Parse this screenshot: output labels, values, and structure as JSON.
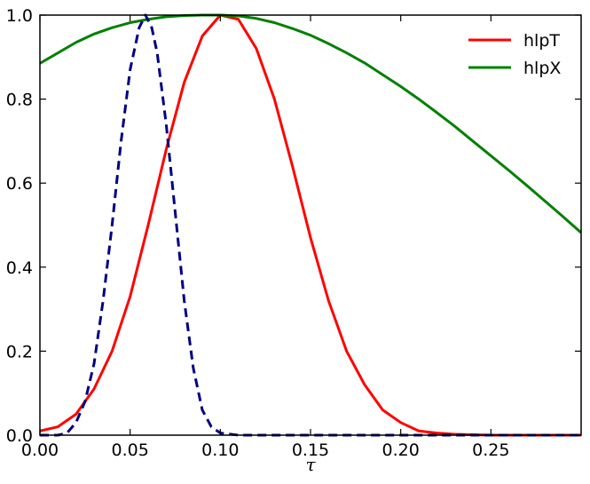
{
  "chart_data": {
    "type": "line",
    "title": "",
    "xlabel": "τ",
    "ylabel": "",
    "xlim": [
      0.0,
      0.3
    ],
    "ylim": [
      0.0,
      1.0
    ],
    "xticks": [
      "0.00",
      "0.05",
      "0.10",
      "0.15",
      "0.20",
      "0.25"
    ],
    "yticks": [
      "0.0",
      "0.2",
      "0.4",
      "0.6",
      "0.8",
      "1.0"
    ],
    "grid": false,
    "legend": "top-right",
    "x": [
      0.0,
      0.01,
      0.02,
      0.03,
      0.04,
      0.05,
      0.06,
      0.07,
      0.08,
      0.09,
      0.1,
      0.11,
      0.12,
      0.13,
      0.14,
      0.15,
      0.16,
      0.17,
      0.18,
      0.19,
      0.2,
      0.21,
      0.22,
      0.23,
      0.24,
      0.25,
      0.26,
      0.27,
      0.28,
      0.29,
      0.3
    ],
    "series": [
      {
        "name": "hlpT",
        "color": "#ff0000",
        "style": "solid",
        "values": [
          0.01,
          0.02,
          0.05,
          0.11,
          0.2,
          0.33,
          0.5,
          0.68,
          0.84,
          0.95,
          1.0,
          0.99,
          0.92,
          0.8,
          0.64,
          0.47,
          0.32,
          0.2,
          0.12,
          0.06,
          0.03,
          0.01,
          0.005,
          0.002,
          0.001,
          0.0,
          0.0,
          0.0,
          0.0,
          0.0,
          0.0
        ]
      },
      {
        "name": "hlpX",
        "color": "#008000",
        "style": "solid",
        "values": [
          0.885,
          0.91,
          0.935,
          0.955,
          0.97,
          0.982,
          0.99,
          0.996,
          0.999,
          1.0,
          1.0,
          0.998,
          0.992,
          0.982,
          0.968,
          0.952,
          0.932,
          0.91,
          0.886,
          0.858,
          0.83,
          0.8,
          0.768,
          0.735,
          0.7,
          0.665,
          0.63,
          0.594,
          0.557,
          0.52,
          0.482
        ]
      },
      {
        "name": "",
        "color": "#000080",
        "style": "dashed",
        "x": [
          0.0,
          0.01,
          0.015,
          0.02,
          0.025,
          0.03,
          0.035,
          0.04,
          0.045,
          0.05,
          0.055,
          0.0585,
          0.062,
          0.065,
          0.07,
          0.075,
          0.08,
          0.085,
          0.09,
          0.095,
          0.1,
          0.11,
          0.3
        ],
        "values": [
          0.0,
          0.0,
          0.005,
          0.03,
          0.08,
          0.17,
          0.32,
          0.5,
          0.7,
          0.87,
          0.97,
          1.0,
          0.97,
          0.91,
          0.74,
          0.53,
          0.32,
          0.16,
          0.06,
          0.02,
          0.005,
          0.0,
          0.0
        ]
      }
    ]
  }
}
